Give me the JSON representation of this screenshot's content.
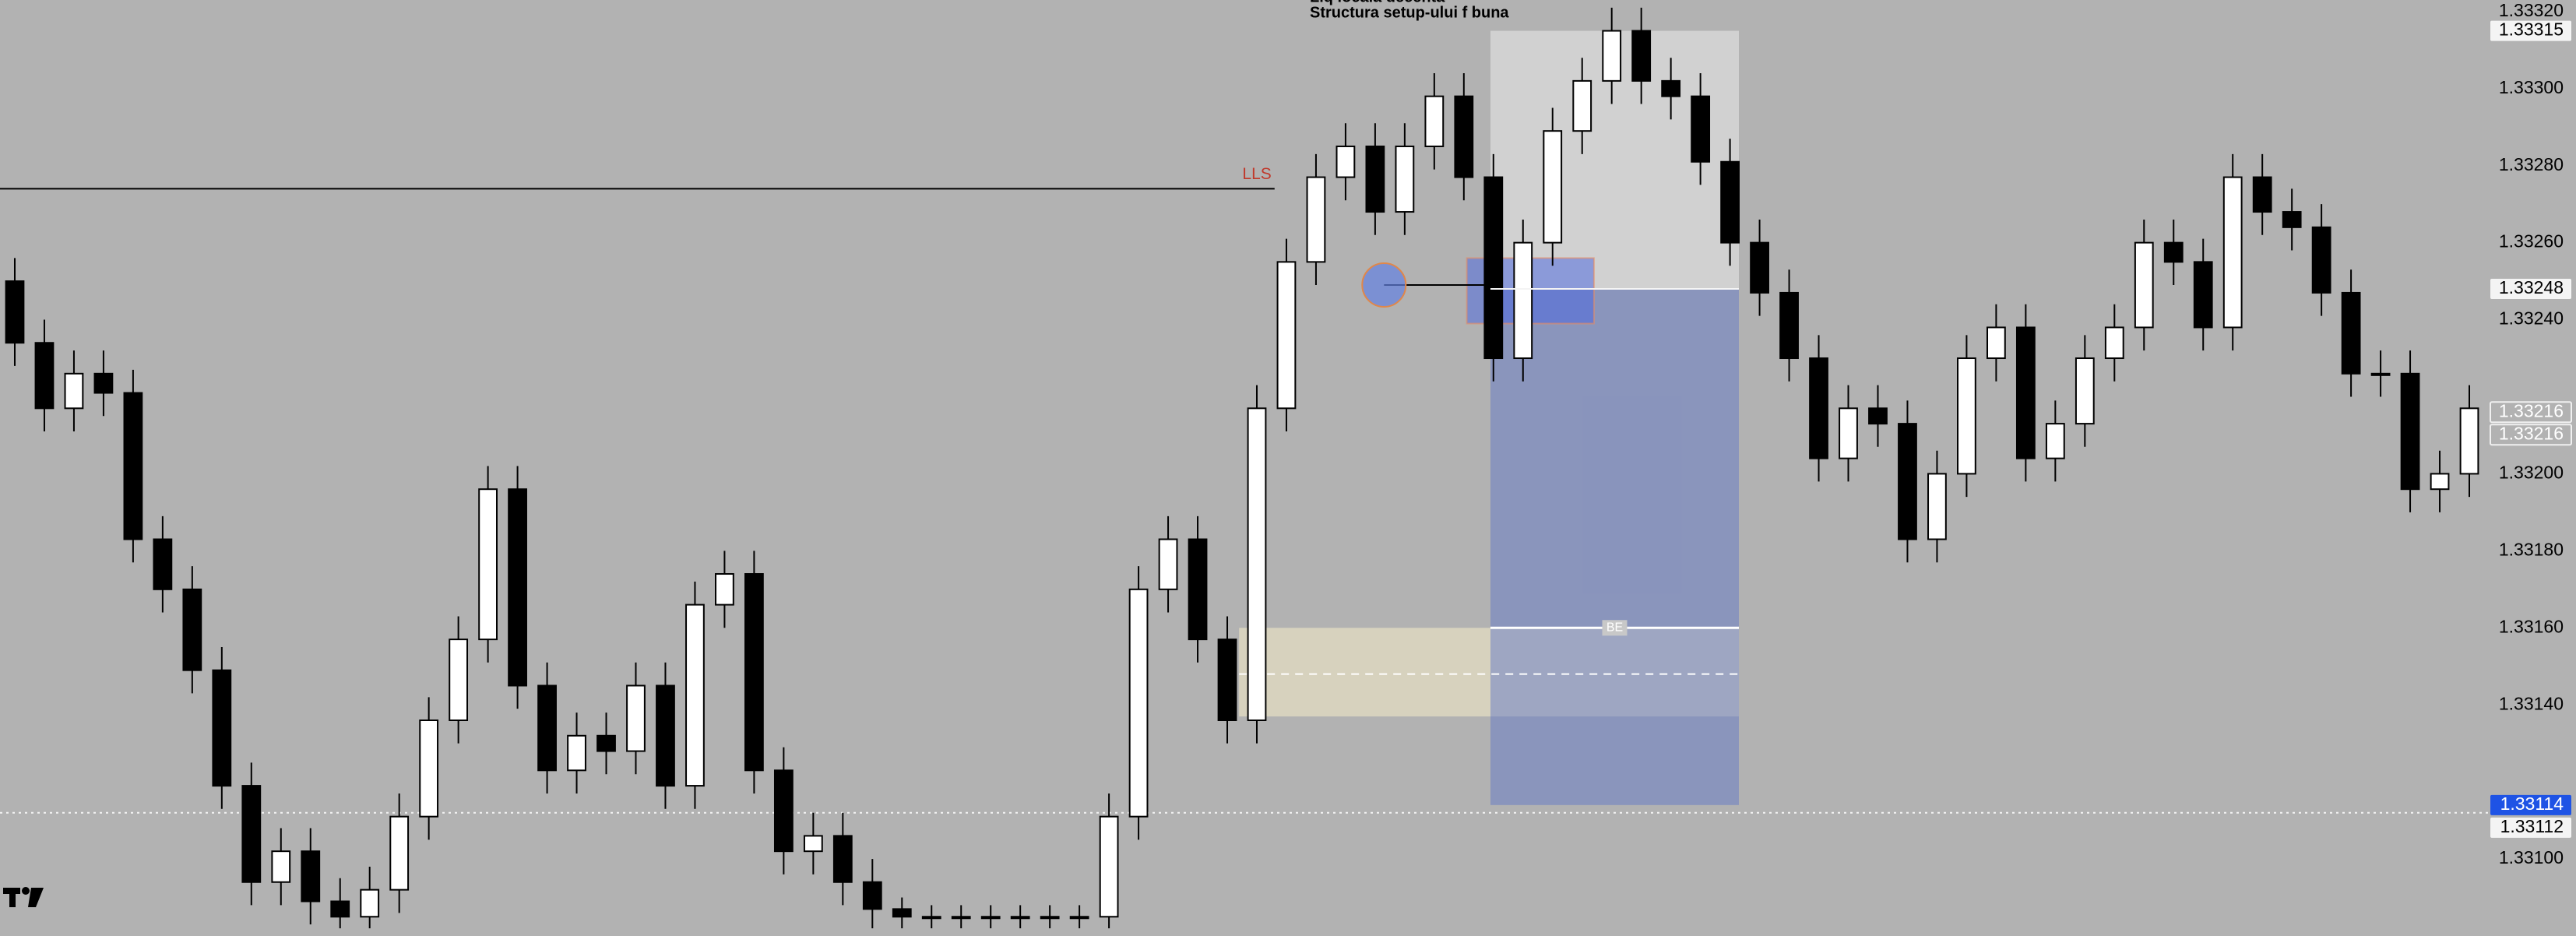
{
  "chart_data": {
    "type": "candlestick",
    "open": [
      1.3325,
      1.33234,
      1.33217,
      1.33226,
      1.33221,
      1.33183,
      1.3317,
      1.33149,
      1.33119,
      1.33094,
      1.33102,
      1.33089,
      1.33085,
      1.33092,
      1.33111,
      1.33136,
      1.33157,
      1.33196,
      1.33145,
      1.33123,
      1.33132,
      1.33128,
      1.33145,
      1.33119,
      1.33166,
      1.33174,
      1.33123,
      1.33102,
      1.33106,
      1.33094,
      1.33087,
      1.33085,
      1.33085,
      1.33085,
      1.33085,
      1.33085,
      1.33085,
      1.33085,
      1.33111,
      1.3317,
      1.33183,
      1.33157,
      1.33136,
      1.33217,
      1.33255,
      1.33277,
      1.33285,
      1.33268,
      1.33285,
      1.33298,
      1.33277,
      1.3323,
      1.3326,
      1.33289,
      1.33302,
      1.33315,
      1.33302,
      1.33298,
      1.33281,
      1.3326,
      1.33247,
      1.3323,
      1.33204,
      1.33217,
      1.33213,
      1.33183,
      1.332,
      1.3323,
      1.33238,
      1.33204,
      1.33213,
      1.3323,
      1.33238,
      1.3326,
      1.33255,
      1.33238,
      1.33277,
      1.33268,
      1.33264,
      1.33247,
      1.33226,
      1.33226,
      1.33196,
      1.332
    ],
    "high": [
      1.33256,
      1.3324,
      1.33232,
      1.33232,
      1.33227,
      1.33189,
      1.33176,
      1.33155,
      1.33125,
      1.33108,
      1.33108,
      1.33095,
      1.33098,
      1.33117,
      1.33142,
      1.33163,
      1.33202,
      1.33202,
      1.33151,
      1.33138,
      1.33138,
      1.33151,
      1.33151,
      1.33172,
      1.3318,
      1.3318,
      1.33129,
      1.33112,
      1.33112,
      1.331,
      1.3309,
      1.33088,
      1.33088,
      1.33088,
      1.33088,
      1.33088,
      1.33088,
      1.33117,
      1.33176,
      1.33189,
      1.33189,
      1.33163,
      1.33223,
      1.33261,
      1.33283,
      1.33291,
      1.33291,
      1.33291,
      1.33304,
      1.33304,
      1.33283,
      1.33266,
      1.33295,
      1.33308,
      1.33321,
      1.33321,
      1.33308,
      1.33304,
      1.33287,
      1.33266,
      1.33253,
      1.33236,
      1.33223,
      1.33223,
      1.33219,
      1.33206,
      1.33236,
      1.33244,
      1.33244,
      1.33219,
      1.33236,
      1.33244,
      1.33266,
      1.33266,
      1.33261,
      1.33283,
      1.33283,
      1.33274,
      1.3327,
      1.33253,
      1.33232,
      1.33232,
      1.33206,
      1.33223
    ],
    "low": [
      1.33228,
      1.33211,
      1.33211,
      1.33215,
      1.33177,
      1.33164,
      1.33143,
      1.33113,
      1.33088,
      1.33088,
      1.33083,
      1.33082,
      1.33082,
      1.33086,
      1.33105,
      1.3313,
      1.33151,
      1.33139,
      1.33117,
      1.33117,
      1.33122,
      1.33122,
      1.33113,
      1.33113,
      1.3316,
      1.33117,
      1.33096,
      1.33096,
      1.33088,
      1.33082,
      1.33082,
      1.33082,
      1.33082,
      1.33082,
      1.33082,
      1.33082,
      1.33082,
      1.33082,
      1.33105,
      1.33164,
      1.33151,
      1.3313,
      1.3313,
      1.33211,
      1.33249,
      1.33271,
      1.33262,
      1.33262,
      1.33279,
      1.33271,
      1.33224,
      1.33224,
      1.33254,
      1.33283,
      1.33296,
      1.33296,
      1.33292,
      1.33275,
      1.33254,
      1.33241,
      1.33224,
      1.33198,
      1.33198,
      1.33207,
      1.33177,
      1.33177,
      1.33194,
      1.33224,
      1.33198,
      1.33198,
      1.33207,
      1.33224,
      1.33232,
      1.33249,
      1.33232,
      1.33232,
      1.33262,
      1.33258,
      1.33241,
      1.3322,
      1.3322,
      1.3319,
      1.3319,
      1.33194
    ],
    "close": [
      1.33234,
      1.33217,
      1.33226,
      1.33221,
      1.33183,
      1.3317,
      1.33149,
      1.33119,
      1.33094,
      1.33102,
      1.33089,
      1.33085,
      1.33092,
      1.33111,
      1.33136,
      1.33157,
      1.33196,
      1.33145,
      1.33123,
      1.33132,
      1.33128,
      1.33145,
      1.33119,
      1.33166,
      1.33174,
      1.33123,
      1.33102,
      1.33106,
      1.33094,
      1.33087,
      1.33085,
      1.33085,
      1.33085,
      1.33085,
      1.33085,
      1.33085,
      1.33085,
      1.33111,
      1.3317,
      1.33183,
      1.33157,
      1.33136,
      1.33217,
      1.33255,
      1.33277,
      1.33285,
      1.33268,
      1.33285,
      1.33298,
      1.33277,
      1.3323,
      1.3326,
      1.33289,
      1.33302,
      1.33315,
      1.33302,
      1.33298,
      1.33281,
      1.3326,
      1.33247,
      1.3323,
      1.33204,
      1.33217,
      1.33213,
      1.33183,
      1.332,
      1.3323,
      1.33238,
      1.33204,
      1.33213,
      1.3323,
      1.33238,
      1.3326,
      1.33255,
      1.33238,
      1.33277,
      1.33268,
      1.33264,
      1.33247,
      1.33226,
      1.33226,
      1.33196,
      1.332,
      1.33217
    ],
    "up_color": "#ffffff",
    "down_color": "#000000",
    "ylim": [
      1.3308,
      1.33323
    ],
    "yticks": [
      {
        "value": 1.331,
        "label": "1.33100"
      },
      {
        "value": 1.3314,
        "label": "1.33140"
      },
      {
        "value": 1.3316,
        "label": "1.33160"
      },
      {
        "value": 1.3318,
        "label": "1.33180"
      },
      {
        "value": 1.332,
        "label": "1.33200"
      },
      {
        "value": 1.3324,
        "label": "1.33240"
      },
      {
        "value": 1.3326,
        "label": "1.33260"
      },
      {
        "value": 1.3328,
        "label": "1.33280"
      },
      {
        "value": 1.333,
        "label": "1.33300"
      },
      {
        "value": 1.3332,
        "label": "1.33320"
      }
    ],
    "grid": false,
    "notes": [
      "Liq locala decenta",
      "Structura setup-ului f buna"
    ],
    "level_line": {
      "label": "LLS",
      "value": 1.33274,
      "color": "#c0392b"
    },
    "position": {
      "entry": 1.33248,
      "stop": 1.33315,
      "target": 1.33114,
      "be": 1.3316,
      "be_label": "BE"
    },
    "zone": {
      "top": 1.3316,
      "bottom": 1.33137,
      "mid": 1.33148
    },
    "fvg": {
      "top": 1.33256,
      "bottom": 1.33239
    },
    "pivot": 1.33249,
    "current_price": 1.33112,
    "price_markers": [
      {
        "value": 1.33315,
        "background": "#f4f4f4",
        "color": "#000000"
      },
      {
        "value": 1.33248,
        "background": "#f4f4f4",
        "color": "#000000"
      },
      {
        "value": 1.33216,
        "background": "#b2b2b2",
        "color": "#ffffff"
      },
      {
        "value": 1.33216,
        "background": "#b2b2b2",
        "color": "#ffffff"
      },
      {
        "value": 1.33114,
        "background": "#1e53e5",
        "color": "#ffffff"
      },
      {
        "value": 1.33112,
        "background": "#f4f4f4",
        "color": "#000000"
      }
    ]
  }
}
